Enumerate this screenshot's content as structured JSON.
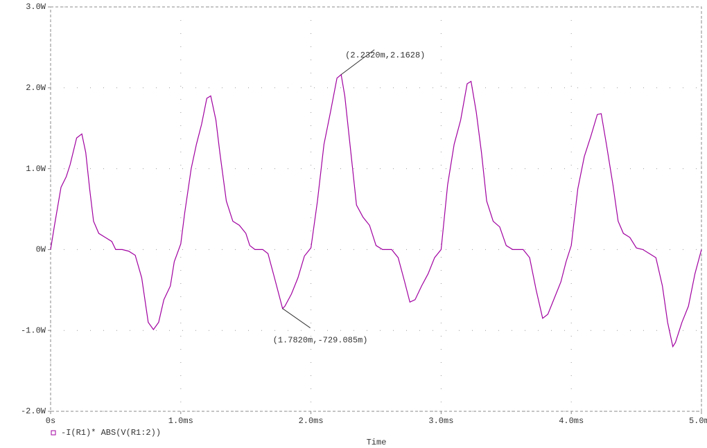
{
  "chart_data": {
    "type": "line",
    "x_label": "Time",
    "xlim": [
      0,
      5
    ],
    "ylim": [
      -2,
      3
    ],
    "xticks": [
      {
        "value": 0,
        "label": "0s"
      },
      {
        "value": 1,
        "label": "1.0ms"
      },
      {
        "value": 2,
        "label": "2.0ms"
      },
      {
        "value": 3,
        "label": "3.0ms"
      },
      {
        "value": 4,
        "label": "4.0ms"
      },
      {
        "value": 5,
        "label": "5.0ms"
      }
    ],
    "yticks": [
      {
        "value": -2,
        "label": "-2.0W"
      },
      {
        "value": -1,
        "label": "-1.0W"
      },
      {
        "value": 0,
        "label": "0W"
      },
      {
        "value": 1,
        "label": "1.0W"
      },
      {
        "value": 2,
        "label": "2.0W"
      },
      {
        "value": 3,
        "label": "3.0W"
      }
    ],
    "grid": true,
    "legend": "bottom-left",
    "x": [
      0,
      0.03,
      0.08,
      0.12,
      0.15,
      0.2,
      0.24,
      0.27,
      0.3,
      0.33,
      0.37,
      0.42,
      0.47,
      0.5,
      0.55,
      0.6,
      0.65,
      0.7,
      0.75,
      0.79,
      0.83,
      0.87,
      0.92,
      0.95,
      1.0,
      1.03,
      1.08,
      1.12,
      1.16,
      1.2,
      1.23,
      1.27,
      1.3,
      1.35,
      1.4,
      1.45,
      1.5,
      1.53,
      1.57,
      1.63,
      1.67,
      1.72,
      1.782,
      1.8,
      1.85,
      1.9,
      1.95,
      2.0,
      2.05,
      2.1,
      2.15,
      2.2,
      2.232,
      2.26,
      2.3,
      2.35,
      2.4,
      2.45,
      2.5,
      2.55,
      2.62,
      2.67,
      2.72,
      2.76,
      2.8,
      2.85,
      2.9,
      2.95,
      3.0,
      3.05,
      3.1,
      3.15,
      3.2,
      3.23,
      3.27,
      3.31,
      3.35,
      3.4,
      3.45,
      3.5,
      3.55,
      3.63,
      3.68,
      3.73,
      3.78,
      3.82,
      3.87,
      3.92,
      3.96,
      4.0,
      4.05,
      4.1,
      4.15,
      4.2,
      4.23,
      4.27,
      4.32,
      4.36,
      4.4,
      4.45,
      4.5,
      4.55,
      4.6,
      4.65,
      4.7,
      4.74,
      4.78,
      4.8,
      4.85,
      4.9,
      4.95,
      5.0
    ],
    "series": [
      {
        "name": "-I(R1)* ABS(V(R1:2))",
        "color": "#a000a0",
        "values": [
          0,
          0.3,
          0.77,
          0.9,
          1.05,
          1.38,
          1.43,
          1.2,
          0.75,
          0.35,
          0.2,
          0.15,
          0.1,
          0.0,
          0.0,
          -0.02,
          -0.07,
          -0.35,
          -0.9,
          -0.99,
          -0.9,
          -0.62,
          -0.45,
          -0.15,
          0.07,
          0.45,
          1.0,
          1.3,
          1.55,
          1.87,
          1.9,
          1.6,
          1.2,
          0.6,
          0.35,
          0.3,
          0.2,
          0.05,
          0.0,
          0.0,
          -0.05,
          -0.35,
          -0.729085,
          -0.7,
          -0.55,
          -0.35,
          -0.08,
          0.02,
          0.6,
          1.3,
          1.7,
          2.12,
          2.1628,
          1.9,
          1.3,
          0.55,
          0.4,
          0.3,
          0.05,
          0.0,
          0.0,
          -0.1,
          -0.4,
          -0.65,
          -0.62,
          -0.45,
          -0.3,
          -0.1,
          0.0,
          0.8,
          1.3,
          1.6,
          2.05,
          2.08,
          1.7,
          1.2,
          0.6,
          0.35,
          0.28,
          0.05,
          0.0,
          0.0,
          -0.1,
          -0.5,
          -0.85,
          -0.8,
          -0.6,
          -0.4,
          -0.15,
          0.05,
          0.75,
          1.15,
          1.4,
          1.67,
          1.68,
          1.3,
          0.8,
          0.35,
          0.2,
          0.15,
          0.02,
          0.0,
          -0.05,
          -0.1,
          -0.45,
          -0.9,
          -1.2,
          -1.15,
          -0.9,
          -0.7,
          -0.3,
          0.0
        ]
      }
    ],
    "annotations": [
      {
        "text": "(2.2320m,2.1628)",
        "x": 2.232,
        "y": 2.1628
      },
      {
        "text": "(1.7820m,-729.085m)",
        "x": 1.782,
        "y": -0.729085
      }
    ]
  }
}
